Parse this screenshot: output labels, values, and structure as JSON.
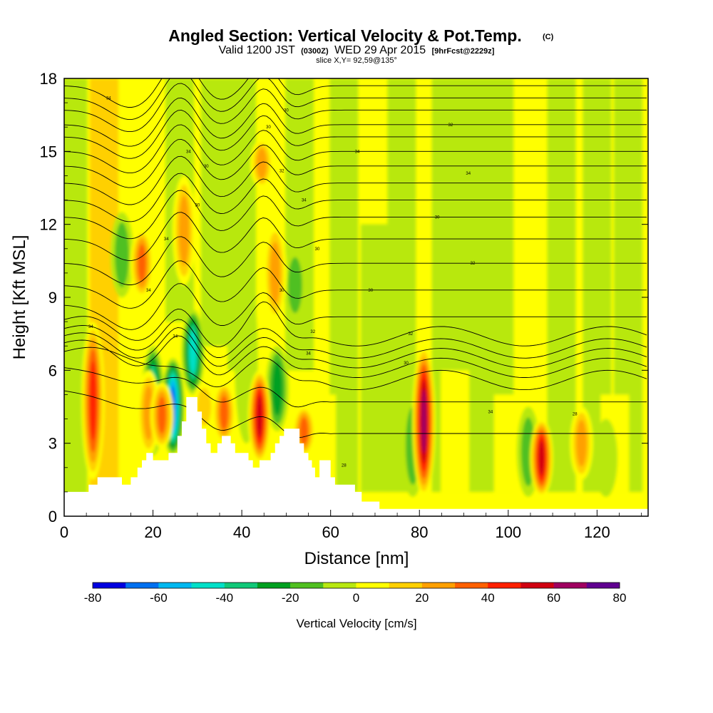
{
  "header": {
    "title": "Angled Section: Vertical Velocity & Pot.Temp.",
    "title_tag": "(C)",
    "valid_prefix": "Valid 1200 JST",
    "valid_z": "(0300Z)",
    "valid_date": "WED 29 Apr 2015",
    "forecast": "[9hrFcst@2229z]",
    "slice": "slice X,Y= 92,59@135°"
  },
  "chart_data": {
    "type": "heatmap",
    "xlabel": "Distance [nm]",
    "ylabel": "Height [Kft MSL]",
    "xlim": [
      0,
      131.5
    ],
    "ylim": [
      0,
      18
    ],
    "x_ticks": [
      "0",
      "20",
      "40",
      "60",
      "80",
      "100",
      "120"
    ],
    "y_ticks": [
      "0",
      "3",
      "6",
      "9",
      "12",
      "15",
      "18"
    ],
    "colorbar": {
      "title": "Vertical Velocity [cm/s]",
      "tick_labels": [
        "-80",
        "-60",
        "-40",
        "-20",
        "0",
        "20",
        "40",
        "60",
        "80"
      ],
      "levels": [
        -80,
        -70,
        -60,
        -50,
        -40,
        -30,
        -20,
        -10,
        0,
        10,
        20,
        30,
        40,
        50,
        60,
        70,
        80
      ],
      "colors": [
        "#0000e0",
        "#0070f0",
        "#00b8f0",
        "#00e0c8",
        "#10c878",
        "#00a020",
        "#50c020",
        "#b8e810",
        "#ffff00",
        "#ffd000",
        "#ffa000",
        "#ff6000",
        "#ff2000",
        "#d00010",
        "#a00060",
        "#600090"
      ]
    },
    "updrafts": [
      {
        "x": 6.5,
        "z_bottom": 1.5,
        "z_top": 8.0,
        "w": 55
      },
      {
        "x": 17.5,
        "z_bottom": 9.0,
        "z_top": 11.8,
        "w": 40
      },
      {
        "x": 19,
        "z_bottom": 2.5,
        "z_top": 6.0,
        "w": 30
      },
      {
        "x": 22,
        "z_bottom": 2.8,
        "z_top": 5.5,
        "w": 40
      },
      {
        "x": 27,
        "z_bottom": 9.5,
        "z_top": 14.0,
        "w": 35
      },
      {
        "x": 31.5,
        "z_bottom": 3.5,
        "z_top": 5.5,
        "w": 25
      },
      {
        "x": 36,
        "z_bottom": 3.0,
        "z_top": 5.5,
        "w": 40
      },
      {
        "x": 44,
        "z_bottom": 2.2,
        "z_top": 6.0,
        "w": 60
      },
      {
        "x": 44.5,
        "z_bottom": 13.5,
        "z_top": 15.5,
        "w": 30
      },
      {
        "x": 47.5,
        "z_bottom": 8.0,
        "z_top": 12.0,
        "w": 30
      },
      {
        "x": 54,
        "z_bottom": 2.5,
        "z_top": 4.5,
        "w": 40
      },
      {
        "x": 81,
        "z_bottom": 0.8,
        "z_top": 7.0,
        "w": 70
      },
      {
        "x": 107.5,
        "z_bottom": 0.8,
        "z_top": 4.0,
        "w": 60
      },
      {
        "x": 116.5,
        "z_bottom": 1.5,
        "z_top": 4.5,
        "w": 35
      }
    ],
    "downdrafts": [
      {
        "x": 13,
        "z_bottom": 9.0,
        "z_top": 12.5,
        "w": -20
      },
      {
        "x": 20,
        "z_bottom": 2.5,
        "z_top": 7.0,
        "w": -50
      },
      {
        "x": 24.5,
        "z_bottom": 2.5,
        "z_top": 6.5,
        "w": -75
      },
      {
        "x": 29,
        "z_bottom": 5.0,
        "z_top": 8.5,
        "w": -55
      },
      {
        "x": 41,
        "z_bottom": 3.0,
        "z_top": 10.0,
        "w": -15
      },
      {
        "x": 48,
        "z_bottom": 3.5,
        "z_top": 7.0,
        "w": -30
      },
      {
        "x": 52,
        "z_bottom": 8.0,
        "z_top": 11.0,
        "w": -20
      },
      {
        "x": 78.5,
        "z_bottom": 0.8,
        "z_top": 5.0,
        "w": -25
      },
      {
        "x": 104.5,
        "z_bottom": 0.8,
        "z_top": 4.5,
        "w": -25
      },
      {
        "x": 122,
        "z_bottom": 0.8,
        "z_top": 4.0,
        "w": -15
      }
    ],
    "terrain": [
      [
        0,
        1.0
      ],
      [
        5.5,
        1.0
      ],
      [
        5.5,
        1.3
      ],
      [
        7.5,
        1.3
      ],
      [
        7.5,
        1.6
      ],
      [
        13,
        1.6
      ],
      [
        13,
        1.3
      ],
      [
        15,
        1.3
      ],
      [
        15,
        1.6
      ],
      [
        16.5,
        1.6
      ],
      [
        16.5,
        2.0
      ],
      [
        17.5,
        2.0
      ],
      [
        17.5,
        2.3
      ],
      [
        18.5,
        2.3
      ],
      [
        18.5,
        2.6
      ],
      [
        20,
        2.6
      ],
      [
        20,
        2.3
      ],
      [
        23.5,
        2.3
      ],
      [
        23.5,
        2.6
      ],
      [
        25.5,
        2.6
      ],
      [
        25.5,
        3.3
      ],
      [
        26.5,
        3.3
      ],
      [
        26.5,
        3.9
      ],
      [
        27.5,
        3.9
      ],
      [
        27.5,
        4.9
      ],
      [
        30,
        4.9
      ],
      [
        30,
        4.3
      ],
      [
        31,
        4.3
      ],
      [
        31,
        3.6
      ],
      [
        32,
        3.6
      ],
      [
        32,
        3.0
      ],
      [
        33,
        3.0
      ],
      [
        33,
        2.6
      ],
      [
        34.5,
        2.6
      ],
      [
        34.5,
        3.0
      ],
      [
        35.5,
        3.0
      ],
      [
        35.5,
        3.3
      ],
      [
        37.5,
        3.3
      ],
      [
        37.5,
        3.0
      ],
      [
        38.5,
        3.0
      ],
      [
        38.5,
        2.6
      ],
      [
        41.5,
        2.6
      ],
      [
        41.5,
        2.3
      ],
      [
        42.5,
        2.3
      ],
      [
        42.5,
        2.0
      ],
      [
        44,
        2.0
      ],
      [
        44,
        2.3
      ],
      [
        46.5,
        2.3
      ],
      [
        46.5,
        2.6
      ],
      [
        47.5,
        2.6
      ],
      [
        47.5,
        3.0
      ],
      [
        48.5,
        3.0
      ],
      [
        48.5,
        3.3
      ],
      [
        49.5,
        3.3
      ],
      [
        49.5,
        3.6
      ],
      [
        53,
        3.6
      ],
      [
        53,
        3.0
      ],
      [
        54,
        3.0
      ],
      [
        54,
        2.6
      ],
      [
        55,
        2.6
      ],
      [
        55,
        2.3
      ],
      [
        55.8,
        2.3
      ],
      [
        55.8,
        2.0
      ],
      [
        56.5,
        2.0
      ],
      [
        56.5,
        1.6
      ],
      [
        57.5,
        1.6
      ],
      [
        57.5,
        2.3
      ],
      [
        60,
        2.3
      ],
      [
        60,
        1.6
      ],
      [
        61,
        1.6
      ],
      [
        61,
        1.3
      ],
      [
        65.5,
        1.3
      ],
      [
        65.5,
        1.0
      ],
      [
        67,
        1.0
      ],
      [
        67,
        0.6
      ],
      [
        71,
        0.6
      ],
      [
        71,
        0.3
      ],
      [
        131.5,
        0.3
      ]
    ],
    "isentrope_labels": [
      "34",
      "30",
      "32",
      "34",
      "34",
      "30",
      "34",
      "30",
      "32",
      "34",
      "30",
      "30",
      "34",
      "30",
      "32",
      "34",
      "30",
      "30",
      "32",
      "34",
      "32",
      "34",
      "30",
      "34",
      "34",
      "28",
      "28"
    ]
  }
}
